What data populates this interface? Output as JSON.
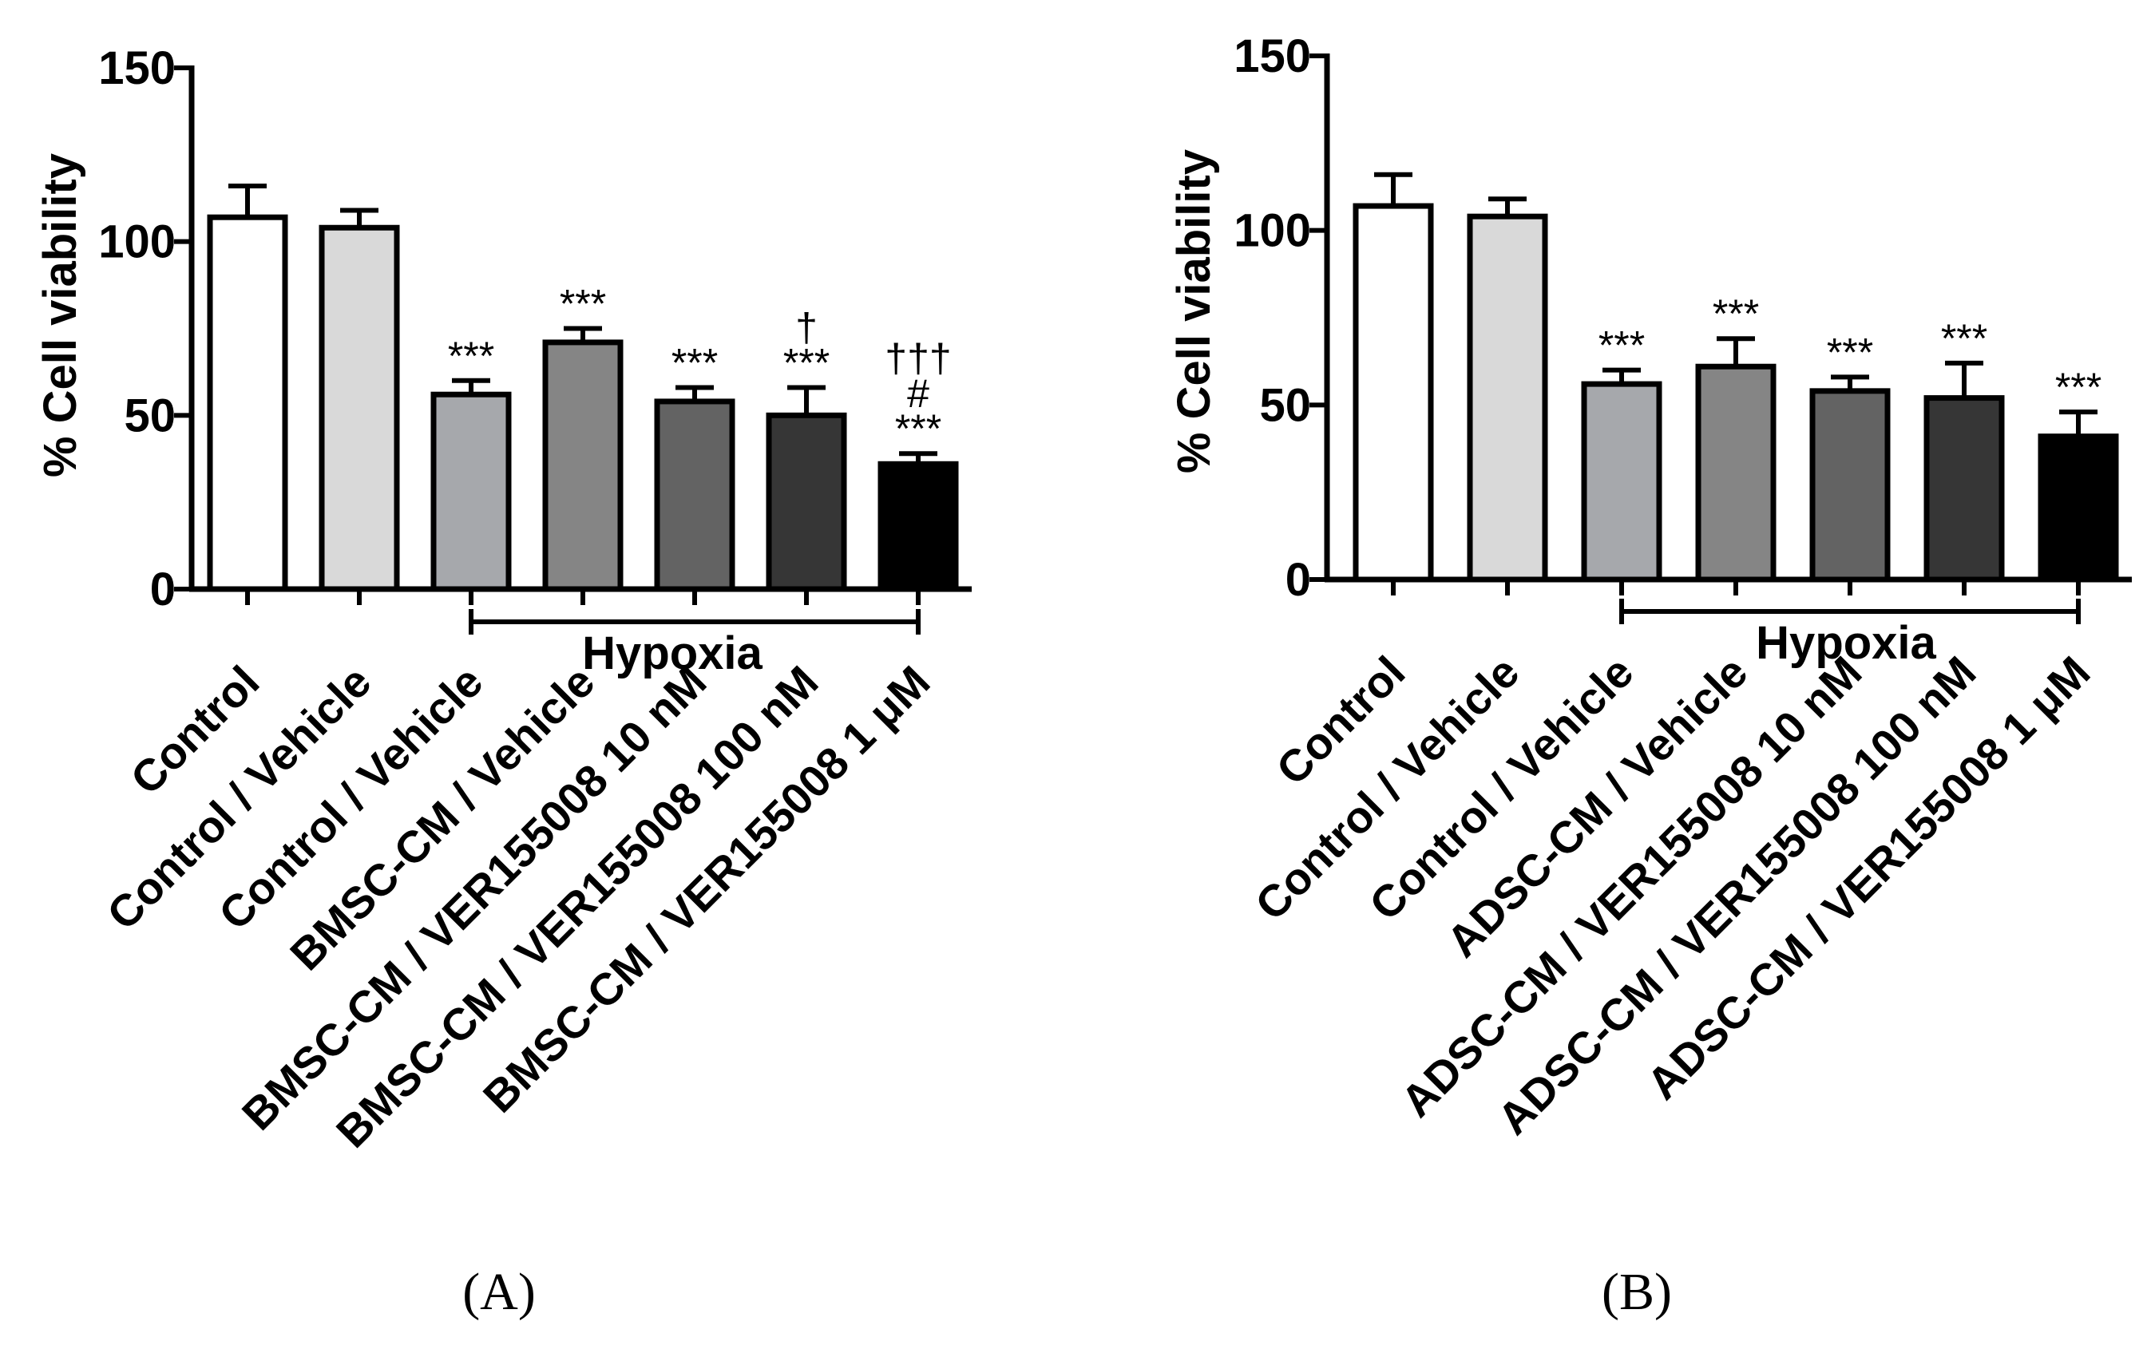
{
  "chart_data": [
    {
      "type": "bar",
      "panel_label": "(A)",
      "ylabel": "% Cell viability",
      "ylim": [
        0,
        150
      ],
      "yticks": [
        "0",
        "50",
        "100",
        "150"
      ],
      "group_label": "Hypoxia",
      "categories": [
        "Control",
        "Control / Vehicle",
        "Control / Vehicle",
        "BMSC-CM / Vehicle",
        "BMSC-CM / VER155008 10 nM",
        "BMSC-CM / VER155008 100 nM",
        "BMSC-CM / VER155008 1 μM"
      ],
      "values": [
        107,
        104,
        56,
        71,
        54,
        50,
        36
      ],
      "errors": [
        9,
        5,
        4,
        4,
        4,
        8,
        3
      ],
      "significance": [
        [],
        [],
        [
          "***"
        ],
        [
          "***"
        ],
        [
          "***"
        ],
        [
          "†",
          "***"
        ],
        [
          "†††",
          "#",
          "***"
        ]
      ],
      "colors": [
        "#ffffff",
        "#d9d9d9",
        "#a6a8ac",
        "#858585",
        "#636363",
        "#363636",
        "#000000"
      ]
    },
    {
      "type": "bar",
      "panel_label": "(B)",
      "ylabel": "% Cell viability",
      "ylim": [
        0,
        150
      ],
      "yticks": [
        "0",
        "50",
        "100",
        "150"
      ],
      "group_label": "Hypoxia",
      "categories": [
        "Control",
        "Control / Vehicle",
        "Control / Vehicle",
        "ADSC-CM / Vehicle",
        "ADSC-CM / VER155008 10 nM",
        "ADSC-CM / VER155008 100 nM",
        "ADSC-CM / VER155008 1 μM"
      ],
      "values": [
        107,
        104,
        56,
        61,
        54,
        52,
        41
      ],
      "errors": [
        9,
        5,
        4,
        8,
        4,
        10,
        7
      ],
      "significance": [
        [],
        [],
        [
          "***"
        ],
        [
          "***"
        ],
        [
          "***"
        ],
        [
          "***"
        ],
        [
          "***"
        ]
      ],
      "colors": [
        "#ffffff",
        "#d9d9d9",
        "#a6a8ac",
        "#858585",
        "#636363",
        "#363636",
        "#000000"
      ]
    }
  ]
}
